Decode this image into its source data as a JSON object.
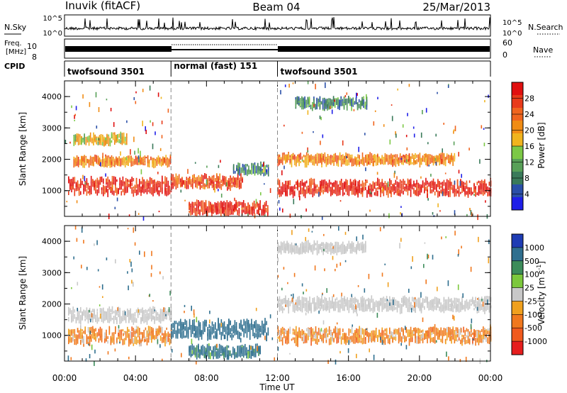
{
  "header": {
    "station": "Inuvik (fitACF)",
    "beam": "Beam 04",
    "date": "25/Mar/2013"
  },
  "noise_panel": {
    "left_label": "N.Sky",
    "right_label": "N.Search",
    "left_ticks": [
      "10^5",
      "10^0"
    ],
    "right_ticks": [
      "10^5",
      "10^0"
    ]
  },
  "freq_panel": {
    "label_line1": "Freq.",
    "label_line2": "[MHz]",
    "left_ticks": [
      "10",
      "8"
    ],
    "right_ticks": [
      "60",
      "0"
    ],
    "right_label": "Nave"
  },
  "cpid_panel": {
    "label": "CPID",
    "segments": [
      {
        "start": "00:00",
        "end": "06:00",
        "label": "twofsound 3501"
      },
      {
        "start": "06:00",
        "end": "12:00",
        "label": "normal (fast) 151"
      },
      {
        "start": "12:00",
        "end": "24:00",
        "label": "twofsound 3501"
      }
    ]
  },
  "colors": {
    "power_scale": [
      "#1f1fe8",
      "#2a4fa8",
      "#3a7a5a",
      "#58a058",
      "#7cc846",
      "#f0b41e",
      "#f08c14",
      "#f0641e",
      "#e83a1a",
      "#e01010"
    ],
    "velocity_scale": [
      "#1e3cb4",
      "#2f6f8f",
      "#3c8c5a",
      "#7cc83c",
      "#c8c8c8",
      "#f0a01e",
      "#f0781e",
      "#f05a1e",
      "#e61e1e"
    ]
  },
  "chart_data": [
    {
      "type": "heatmap",
      "title": "",
      "xlabel": "Time UT",
      "ylabel": "Slant Range [km]",
      "xlim": [
        0,
        24
      ],
      "ylim": [
        180,
        4500
      ],
      "x_tick_labels": [
        "00:00",
        "04:00",
        "08:00",
        "12:00",
        "16:00",
        "20:00",
        "00:00"
      ],
      "y_tick_labels": [
        "1000",
        "2000",
        "3000",
        "4000"
      ],
      "colorbar_label": "Power [dB]",
      "colorbar_ticks": [
        "28",
        "24",
        "20",
        "16",
        "12",
        "8",
        "4"
      ],
      "colorbar_range": [
        0,
        30
      ],
      "features": [
        {
          "t_start": 0.2,
          "t_end": 6.0,
          "range_center": 1150,
          "range_width": 450,
          "value": 27
        },
        {
          "t_start": 0.5,
          "t_end": 6.0,
          "range_center": 1950,
          "range_width": 200,
          "value": 20
        },
        {
          "t_start": 0.5,
          "t_end": 3.5,
          "range_center": 2650,
          "range_width": 250,
          "value": 16
        },
        {
          "t_start": 6.0,
          "t_end": 10.0,
          "range_center": 1300,
          "range_width": 350,
          "value": 24
        },
        {
          "t_start": 7.0,
          "t_end": 11.5,
          "range_center": 450,
          "range_width": 300,
          "value": 26
        },
        {
          "t_start": 9.5,
          "t_end": 11.5,
          "range_center": 1700,
          "range_width": 250,
          "value": 8
        },
        {
          "t_start": 12.0,
          "t_end": 24.0,
          "range_center": 1100,
          "range_width": 400,
          "value": 27
        },
        {
          "t_start": 12.0,
          "t_end": 22.0,
          "range_center": 2000,
          "range_width": 250,
          "value": 20
        },
        {
          "t_start": 13.0,
          "t_end": 17.0,
          "range_center": 3800,
          "range_width": 250,
          "value": 8
        }
      ]
    },
    {
      "type": "heatmap",
      "title": "",
      "xlabel": "Time UT",
      "ylabel": "Slant Range [km]",
      "xlim": [
        0,
        24
      ],
      "ylim": [
        180,
        4500
      ],
      "x_tick_labels": [
        "00:00",
        "04:00",
        "08:00",
        "12:00",
        "16:00",
        "20:00",
        "00:00"
      ],
      "y_tick_labels": [
        "1000",
        "2000",
        "3000",
        "4000"
      ],
      "colorbar_label": "Velocity [m s^-1]",
      "colorbar_ticks": [
        "1000",
        "500",
        "100",
        "25",
        "-25",
        "-100",
        "-500",
        "-1000"
      ],
      "colorbar_range": [
        -1000,
        1000
      ],
      "features": [
        {
          "t_start": 0.2,
          "t_end": 6.0,
          "range_center": 1000,
          "range_width": 450,
          "value": -150
        },
        {
          "t_start": 0.2,
          "t_end": 6.0,
          "range_center": 1650,
          "range_width": 350,
          "value": 0
        },
        {
          "t_start": 6.0,
          "t_end": 11.5,
          "range_center": 1200,
          "range_width": 500,
          "value": 300
        },
        {
          "t_start": 7.0,
          "t_end": 11.0,
          "range_center": 500,
          "range_width": 300,
          "value": 200
        },
        {
          "t_start": 12.0,
          "t_end": 24.0,
          "range_center": 1000,
          "range_width": 400,
          "value": -150
        },
        {
          "t_start": 12.0,
          "t_end": 24.0,
          "range_center": 2000,
          "range_width": 350,
          "value": 0
        },
        {
          "t_start": 12.0,
          "t_end": 17.0,
          "range_center": 3800,
          "range_width": 250,
          "value": 0
        }
      ]
    }
  ]
}
